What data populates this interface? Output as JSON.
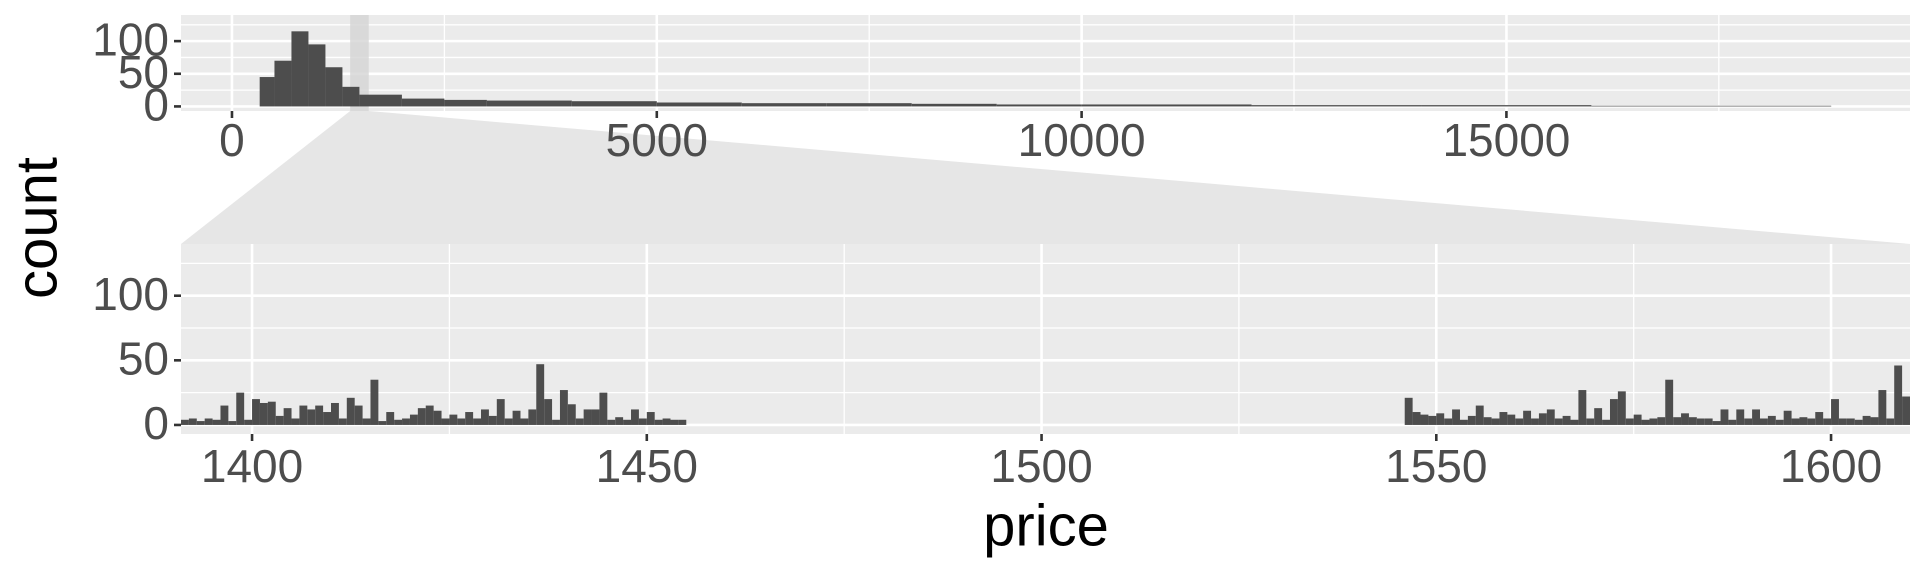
{
  "chart_data": [
    {
      "type": "histogram",
      "y_label": "count",
      "color": "#4d4d4d",
      "bins": [
        326,
        500,
        700,
        900,
        1100,
        1300,
        1500,
        2000,
        2500,
        3000,
        4000,
        5000,
        6000,
        7000,
        8000,
        9000,
        10000,
        12000,
        14000,
        16000,
        18823
      ],
      "values": [
        45,
        70,
        115,
        95,
        60,
        30,
        18,
        12,
        10,
        9,
        8,
        6,
        5,
        5,
        4,
        3,
        3,
        2,
        2,
        1
      ],
      "xlim": [
        -600,
        19750
      ],
      "ylim": [
        -7,
        140
      ],
      "xticks": [
        0,
        5000,
        10000,
        15000
      ],
      "xminorticks": [
        2500,
        7500,
        12500,
        17500
      ],
      "yticks": [
        0,
        50,
        100
      ],
      "yminorticks": [
        25,
        75,
        125
      ],
      "grid": true
    },
    {
      "type": "histogram",
      "x_label": "price",
      "color": "#4d4d4d",
      "bins": [
        1391,
        1392,
        1393,
        1394,
        1395,
        1396,
        1397,
        1398,
        1399,
        1400,
        1401,
        1402,
        1403,
        1404,
        1405,
        1406,
        1407,
        1408,
        1409,
        1410,
        1411,
        1412,
        1413,
        1414,
        1415,
        1416,
        1417,
        1418,
        1419,
        1420,
        1421,
        1422,
        1423,
        1424,
        1425,
        1426,
        1427,
        1428,
        1429,
        1430,
        1431,
        1432,
        1433,
        1434,
        1435,
        1436,
        1437,
        1438,
        1439,
        1440,
        1441,
        1442,
        1443,
        1444,
        1445,
        1446,
        1447,
        1448,
        1449,
        1450,
        1451,
        1452,
        1453,
        1454,
        1455,
        1456,
        1457,
        1458,
        1459,
        1460,
        1461,
        1462,
        1463,
        1464,
        1465,
        1466,
        1467,
        1468,
        1469,
        1470,
        1471,
        1472,
        1473,
        1474,
        1475,
        1476,
        1477,
        1478,
        1479,
        1480,
        1481,
        1482,
        1483,
        1484,
        1485,
        1486,
        1487,
        1488,
        1489,
        1490,
        1491,
        1492,
        1493,
        1494,
        1495,
        1496,
        1497,
        1498,
        1499,
        1500,
        1501,
        1502,
        1503,
        1504,
        1505,
        1506,
        1507,
        1508,
        1509,
        1510,
        1511,
        1512,
        1513,
        1514,
        1515,
        1516,
        1517,
        1518,
        1519,
        1520,
        1521,
        1522,
        1523,
        1524,
        1525,
        1526,
        1527,
        1528,
        1529,
        1530,
        1531,
        1532,
        1533,
        1534,
        1535,
        1536,
        1537,
        1538,
        1539,
        1540,
        1541,
        1542,
        1543,
        1544,
        1545,
        1546,
        1547,
        1548,
        1549,
        1550,
        1551,
        1552,
        1553,
        1554,
        1555,
        1556,
        1557,
        1558,
        1559,
        1560,
        1561,
        1562,
        1563,
        1564,
        1565,
        1566,
        1567,
        1568,
        1569,
        1570,
        1571,
        1572,
        1573,
        1574,
        1575,
        1576,
        1577,
        1578,
        1579,
        1580,
        1581,
        1582,
        1583,
        1584,
        1585,
        1586,
        1587,
        1588,
        1589,
        1590,
        1591,
        1592,
        1593,
        1594,
        1595,
        1596,
        1597,
        1598,
        1599,
        1600,
        1601,
        1602,
        1603,
        1604,
        1605,
        1606,
        1607,
        1608,
        1609,
        1610
      ],
      "values": [
        4,
        5,
        3,
        5,
        4,
        15,
        3,
        25,
        4,
        20,
        17,
        18,
        7,
        13,
        5,
        15,
        12,
        15,
        10,
        17,
        5,
        21,
        15,
        5,
        35,
        3,
        10,
        4,
        5,
        8,
        13,
        15,
        11,
        5,
        8,
        5,
        10,
        5,
        12,
        7,
        20,
        5,
        11,
        5,
        12,
        47,
        20,
        4,
        27,
        16,
        5,
        12,
        12,
        25,
        4,
        6,
        4,
        12,
        5,
        10,
        4,
        5,
        4,
        4,
        0,
        0,
        0,
        0,
        0,
        0,
        0,
        0,
        0,
        0,
        0,
        0,
        0,
        0,
        0,
        0,
        0,
        0,
        0,
        0,
        0,
        0,
        0,
        0,
        0,
        0,
        0,
        0,
        0,
        0,
        0,
        0,
        0,
        0,
        0,
        0,
        0,
        0,
        0,
        0,
        0,
        0,
        0,
        0,
        0,
        0,
        0,
        0,
        0,
        0,
        0,
        0,
        0,
        0,
        0,
        0,
        0,
        0,
        0,
        0,
        0,
        0,
        0,
        0,
        0,
        0,
        0,
        0,
        0,
        0,
        0,
        0,
        0,
        0,
        0,
        0,
        0,
        0,
        0,
        0,
        0,
        0,
        0,
        0,
        0,
        0,
        0,
        0,
        0,
        0,
        0,
        21,
        10,
        8,
        7,
        9,
        5,
        12,
        4,
        7,
        15,
        6,
        5,
        10,
        8,
        5,
        11,
        5,
        9,
        12,
        5,
        7,
        4,
        27,
        5,
        13,
        4,
        20,
        26,
        5,
        8,
        4,
        5,
        6,
        35,
        6,
        9,
        6,
        5,
        5,
        3,
        12,
        4,
        12,
        5,
        12,
        5,
        7,
        4,
        11,
        5,
        6,
        5,
        10,
        5,
        20,
        5,
        5,
        4,
        7,
        6,
        27,
        5,
        46,
        22
      ],
      "xlim": [
        1391,
        1610
      ],
      "ylim": [
        -7,
        140
      ],
      "xticks": [
        1400,
        1450,
        1500,
        1550,
        1600
      ],
      "xminorticks": [
        1425,
        1475,
        1525,
        1575
      ],
      "yticks": [
        0,
        50,
        100
      ],
      "yminorticks": [
        25,
        75,
        125
      ],
      "grid": true
    }
  ]
}
